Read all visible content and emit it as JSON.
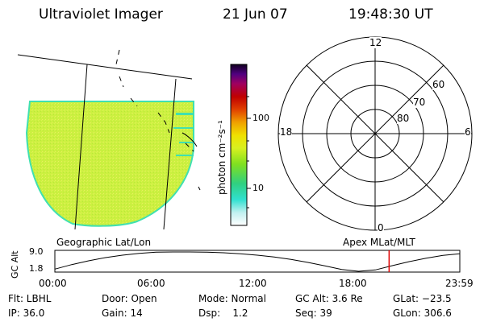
{
  "header": {
    "instrument": "Ultraviolet Imager",
    "date": "21 Jun 07",
    "time": "19:48:30 UT"
  },
  "colorbar": {
    "unit_label": "photon cm⁻²s⁻¹",
    "ticks": [
      "100",
      "10"
    ]
  },
  "polar_plot": {
    "mlt_labels": {
      "top": "12",
      "left": "18",
      "right": "6",
      "bottom": "0"
    },
    "lat_labels": [
      "60",
      "70",
      "80"
    ]
  },
  "coords": {
    "left_label": "Geographic Lat/Lon",
    "right_label": "Apex MLat/MLT"
  },
  "alt_chart": {
    "ylabel": "GC Alt",
    "y_ticks": [
      "9.0",
      "1.8"
    ],
    "x_ticks": [
      "00:00",
      "06:00",
      "12:00",
      "18:00",
      "23:59"
    ],
    "marker_time": "19:48"
  },
  "chart_data": {
    "type": "line",
    "title": "",
    "xlabel": "",
    "ylabel": "GC Alt",
    "ylim": [
      1.8,
      9.0
    ],
    "x_hours": [
      0,
      1,
      2,
      3,
      4,
      5,
      6,
      7,
      8,
      9,
      10,
      11,
      12,
      13,
      14,
      15,
      16,
      17,
      18,
      19,
      20,
      21,
      22,
      23,
      23.98
    ],
    "values": [
      2.6,
      4.3,
      5.7,
      6.9,
      7.8,
      8.5,
      8.9,
      9.0,
      9.0,
      8.9,
      8.7,
      8.3,
      7.8,
      7.1,
      6.2,
      5.1,
      3.8,
      2.5,
      1.8,
      2.3,
      3.9,
      5.4,
      6.7,
      7.7,
      8.3
    ],
    "marker_hour": 19.81,
    "marker_color": "#e00000",
    "grid": false
  },
  "footer": {
    "rows": [
      [
        "Flt: LBHL",
        "Door: Open",
        "Mode: Normal",
        "GC Alt: 3.6 Re",
        "GLat: −23.5"
      ],
      [
        "IP: 36.0",
        "Gain: 14",
        "Dsp:    1.2",
        "Seq: 39",
        "GLon: 306.6"
      ]
    ]
  },
  "colors": {
    "image_fill": "#c8f040",
    "image_edge": "#3fe0c0",
    "axis": "#000000"
  }
}
